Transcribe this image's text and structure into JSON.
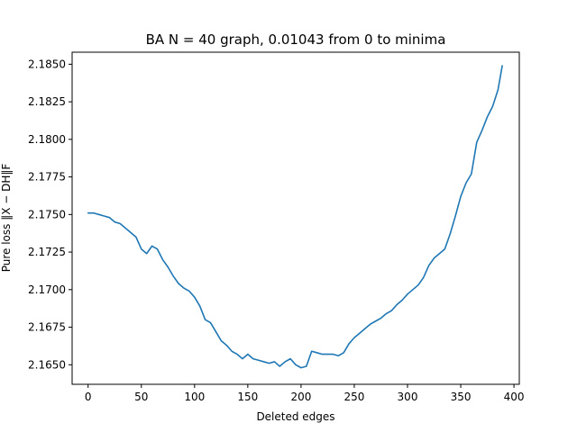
{
  "chart_data": {
    "type": "line",
    "title": "BA N = 40 graph, 0.01043 from 0 to minima",
    "xlabel": "Deleted edges",
    "ylabel": "Pure loss ‖X − DH‖F",
    "xlim": [
      -15,
      405
    ],
    "ylim": [
      2.1637,
      2.1858
    ],
    "xticks": [
      0,
      50,
      100,
      150,
      200,
      250,
      300,
      350,
      400
    ],
    "yticks": [
      2.165,
      2.1675,
      2.17,
      2.1725,
      2.175,
      2.1775,
      2.18,
      2.1825,
      2.185
    ],
    "xtick_labels": [
      "0",
      "50",
      "100",
      "150",
      "200",
      "250",
      "300",
      "350",
      "400"
    ],
    "ytick_labels": [
      "2.1650",
      "2.1675",
      "2.1700",
      "2.1725",
      "2.1750",
      "2.1775",
      "2.1800",
      "2.1825",
      "2.1850"
    ],
    "grid": false,
    "series": [
      {
        "color": "#1f77b4",
        "x": [
          0,
          5,
          10,
          15,
          20,
          25,
          30,
          35,
          40,
          45,
          50,
          55,
          60,
          65,
          70,
          75,
          80,
          85,
          90,
          95,
          100,
          105,
          110,
          115,
          120,
          125,
          130,
          135,
          140,
          145,
          150,
          155,
          160,
          165,
          170,
          175,
          180,
          185,
          190,
          195,
          200,
          205,
          210,
          215,
          220,
          225,
          230,
          235,
          240,
          245,
          250,
          255,
          260,
          265,
          270,
          275,
          280,
          285,
          290,
          295,
          300,
          305,
          310,
          315,
          320,
          325,
          330,
          335,
          340,
          345,
          350,
          355,
          360,
          365,
          370,
          375,
          380,
          385,
          389
        ],
        "y": [
          2.1751,
          2.1751,
          2.175,
          2.1749,
          2.1748,
          2.1745,
          2.1744,
          2.1741,
          2.1738,
          2.1735,
          2.1727,
          2.1724,
          2.1729,
          2.1727,
          2.172,
          2.1715,
          2.1709,
          2.1704,
          2.1701,
          2.1699,
          2.1695,
          2.1689,
          2.168,
          2.1678,
          2.1672,
          2.1666,
          2.1663,
          2.1659,
          2.1657,
          2.1654,
          2.1657,
          2.1654,
          2.1653,
          2.1652,
          2.1651,
          2.1652,
          2.1649,
          2.1652,
          2.1654,
          2.165,
          2.1648,
          2.1649,
          2.1659,
          2.1658,
          2.1657,
          2.1657,
          2.1657,
          2.1656,
          2.1658,
          2.1664,
          2.1668,
          2.1671,
          2.1674,
          2.1677,
          2.1679,
          2.1681,
          2.1684,
          2.1686,
          2.169,
          2.1693,
          2.1697,
          2.17,
          2.1703,
          2.1708,
          2.1716,
          2.1721,
          2.1724,
          2.1727,
          2.1737,
          2.1749,
          2.1762,
          2.1771,
          2.1777,
          2.1798,
          2.1806,
          2.1815,
          2.1822,
          2.1833,
          2.1849
        ]
      }
    ]
  }
}
